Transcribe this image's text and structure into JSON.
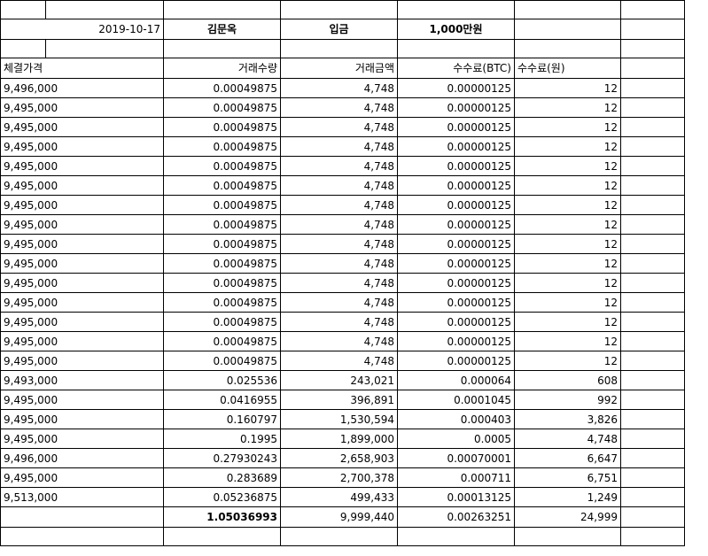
{
  "info": {
    "date": "2019-10-17",
    "name": "김문옥",
    "deposit_label": "입금",
    "deposit_amount": "1,000만원"
  },
  "headers": {
    "price": "체결가격",
    "qty": "거래수량",
    "amount": "거래금액",
    "fee_btc": "수수료(BTC)",
    "fee_krw": "수수료(원)"
  },
  "rows": [
    {
      "price": "9,496,000",
      "qty": "0.00049875",
      "amount": "4,748",
      "fee_btc": "0.00000125",
      "fee_krw": "12"
    },
    {
      "price": "9,495,000",
      "qty": "0.00049875",
      "amount": "4,748",
      "fee_btc": "0.00000125",
      "fee_krw": "12"
    },
    {
      "price": "9,495,000",
      "qty": "0.00049875",
      "amount": "4,748",
      "fee_btc": "0.00000125",
      "fee_krw": "12"
    },
    {
      "price": "9,495,000",
      "qty": "0.00049875",
      "amount": "4,748",
      "fee_btc": "0.00000125",
      "fee_krw": "12"
    },
    {
      "price": "9,495,000",
      "qty": "0.00049875",
      "amount": "4,748",
      "fee_btc": "0.00000125",
      "fee_krw": "12"
    },
    {
      "price": "9,495,000",
      "qty": "0.00049875",
      "amount": "4,748",
      "fee_btc": "0.00000125",
      "fee_krw": "12"
    },
    {
      "price": "9,495,000",
      "qty": "0.00049875",
      "amount": "4,748",
      "fee_btc": "0.00000125",
      "fee_krw": "12"
    },
    {
      "price": "9,495,000",
      "qty": "0.00049875",
      "amount": "4,748",
      "fee_btc": "0.00000125",
      "fee_krw": "12"
    },
    {
      "price": "9,495,000",
      "qty": "0.00049875",
      "amount": "4,748",
      "fee_btc": "0.00000125",
      "fee_krw": "12"
    },
    {
      "price": "9,495,000",
      "qty": "0.00049875",
      "amount": "4,748",
      "fee_btc": "0.00000125",
      "fee_krw": "12"
    },
    {
      "price": "9,495,000",
      "qty": "0.00049875",
      "amount": "4,748",
      "fee_btc": "0.00000125",
      "fee_krw": "12"
    },
    {
      "price": "9,495,000",
      "qty": "0.00049875",
      "amount": "4,748",
      "fee_btc": "0.00000125",
      "fee_krw": "12"
    },
    {
      "price": "9,495,000",
      "qty": "0.00049875",
      "amount": "4,748",
      "fee_btc": "0.00000125",
      "fee_krw": "12"
    },
    {
      "price": "9,495,000",
      "qty": "0.00049875",
      "amount": "4,748",
      "fee_btc": "0.00000125",
      "fee_krw": "12"
    },
    {
      "price": "9,495,000",
      "qty": "0.00049875",
      "amount": "4,748",
      "fee_btc": "0.00000125",
      "fee_krw": "12"
    },
    {
      "price": "9,493,000",
      "qty": "0.025536",
      "amount": "243,021",
      "fee_btc": "0.000064",
      "fee_krw": "608"
    },
    {
      "price": "9,495,000",
      "qty": "0.0416955",
      "amount": "396,891",
      "fee_btc": "0.0001045",
      "fee_krw": "992"
    },
    {
      "price": "9,495,000",
      "qty": "0.160797",
      "amount": "1,530,594",
      "fee_btc": "0.000403",
      "fee_krw": "3,826"
    },
    {
      "price": "9,495,000",
      "qty": "0.1995",
      "amount": "1,899,000",
      "fee_btc": "0.0005",
      "fee_krw": "4,748"
    },
    {
      "price": "9,496,000",
      "qty": "0.27930243",
      "amount": "2,658,903",
      "fee_btc": "0.00070001",
      "fee_krw": "6,647"
    },
    {
      "price": "9,495,000",
      "qty": "0.283689",
      "amount": "2,700,378",
      "fee_btc": "0.000711",
      "fee_krw": "6,751"
    },
    {
      "price": "9,513,000",
      "qty": "0.05236875",
      "amount": "499,433",
      "fee_btc": "0.00013125",
      "fee_krw": "1,249"
    }
  ],
  "totals": {
    "qty": "1.05036993",
    "amount": "9,999,440",
    "fee_btc": "0.00263251",
    "fee_krw": "24,999"
  }
}
